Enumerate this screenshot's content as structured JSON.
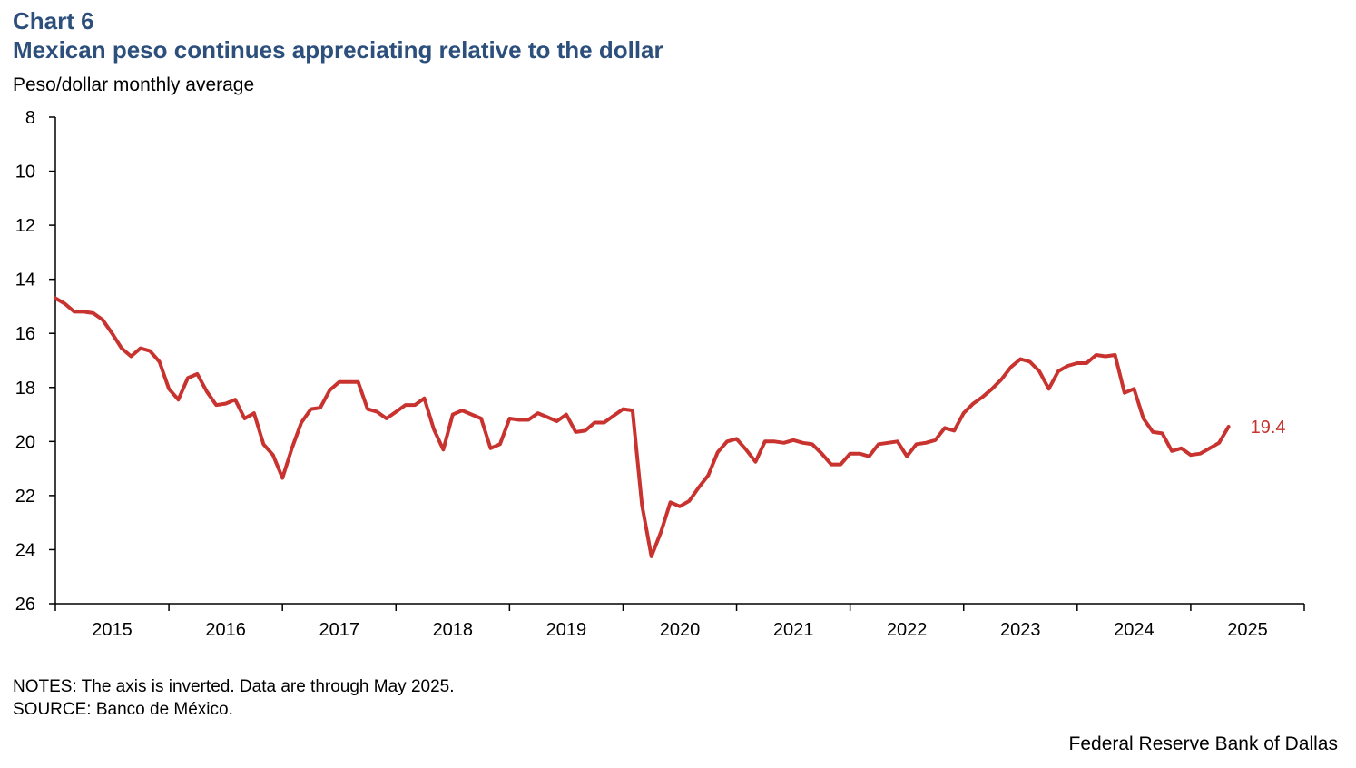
{
  "header": {
    "chart_number": "Chart 6",
    "title": "Mexican peso continues appreciating relative to the dollar",
    "subtitle": "Peso/dollar monthly average"
  },
  "footer": {
    "notes": "NOTES: The axis is inverted. Data are through May 2025.",
    "source": "SOURCE: Banco de México.",
    "credit": "Federal Reserve Bank of Dallas"
  },
  "colors": {
    "line": "#c8332f",
    "title": "#2c4f7c",
    "axis": "#000000"
  },
  "chart_data": {
    "type": "line",
    "y_inverted": true,
    "ylim": [
      8,
      26
    ],
    "yticks": [
      8,
      10,
      12,
      14,
      16,
      18,
      20,
      22,
      24,
      26
    ],
    "x_start": "2015-01",
    "x_end": "2025-12",
    "year_labels": [
      "2015",
      "2016",
      "2017",
      "2018",
      "2019",
      "2020",
      "2021",
      "2022",
      "2023",
      "2024",
      "2025"
    ],
    "end_label": "19.4",
    "series": [
      {
        "x": [
          "2015-01",
          "2015-02",
          "2015-03",
          "2015-04",
          "2015-05",
          "2015-06",
          "2015-07",
          "2015-08",
          "2015-09",
          "2015-10",
          "2015-11",
          "2015-12",
          "2016-01",
          "2016-02",
          "2016-03",
          "2016-04",
          "2016-05",
          "2016-06",
          "2016-07",
          "2016-08",
          "2016-09",
          "2016-10",
          "2016-11",
          "2016-12",
          "2017-01",
          "2017-02",
          "2017-03",
          "2017-04",
          "2017-05",
          "2017-06",
          "2017-07",
          "2017-08",
          "2017-09",
          "2017-10",
          "2017-11",
          "2017-12",
          "2018-01",
          "2018-02",
          "2018-03",
          "2018-04",
          "2018-05",
          "2018-06",
          "2018-07",
          "2018-08",
          "2018-09",
          "2018-10",
          "2018-11",
          "2018-12",
          "2019-01",
          "2019-02",
          "2019-03",
          "2019-04",
          "2019-05",
          "2019-06",
          "2019-07",
          "2019-08",
          "2019-09",
          "2019-10",
          "2019-11",
          "2019-12",
          "2020-01",
          "2020-02",
          "2020-03",
          "2020-04",
          "2020-05",
          "2020-06",
          "2020-07",
          "2020-08",
          "2020-09",
          "2020-10",
          "2020-11",
          "2020-12",
          "2021-01",
          "2021-02",
          "2021-03",
          "2021-04",
          "2021-05",
          "2021-06",
          "2021-07",
          "2021-08",
          "2021-09",
          "2021-10",
          "2021-11",
          "2021-12",
          "2022-01",
          "2022-02",
          "2022-03",
          "2022-04",
          "2022-05",
          "2022-06",
          "2022-07",
          "2022-08",
          "2022-09",
          "2022-10",
          "2022-11",
          "2022-12",
          "2023-01",
          "2023-02",
          "2023-03",
          "2023-04",
          "2023-05",
          "2023-06",
          "2023-07",
          "2023-08",
          "2023-09",
          "2023-10",
          "2023-11",
          "2023-12",
          "2024-01",
          "2024-02",
          "2024-03",
          "2024-04",
          "2024-05",
          "2024-06",
          "2024-07",
          "2024-08",
          "2024-09",
          "2024-10",
          "2024-11",
          "2024-12",
          "2025-01",
          "2025-02",
          "2025-03",
          "2025-04",
          "2025-05"
        ],
        "values": [
          14.7,
          14.9,
          15.2,
          15.2,
          15.25,
          15.5,
          16.0,
          16.55,
          16.85,
          16.55,
          16.65,
          17.05,
          18.05,
          18.45,
          17.65,
          17.5,
          18.15,
          18.65,
          18.6,
          18.45,
          19.15,
          18.95,
          20.1,
          20.5,
          21.35,
          20.25,
          19.3,
          18.8,
          18.75,
          18.1,
          17.8,
          17.8,
          17.8,
          18.8,
          18.9,
          19.15,
          18.9,
          18.65,
          18.65,
          18.4,
          19.55,
          20.3,
          19.0,
          18.85,
          19.0,
          19.15,
          20.25,
          20.1,
          19.15,
          19.2,
          19.2,
          18.95,
          19.1,
          19.25,
          19.0,
          19.65,
          19.6,
          19.3,
          19.3,
          19.05,
          18.8,
          18.85,
          22.35,
          24.25,
          23.35,
          22.25,
          22.4,
          22.2,
          21.7,
          21.25,
          20.4,
          20.0,
          19.9,
          20.3,
          20.75,
          20.0,
          20.0,
          20.05,
          19.95,
          20.05,
          20.1,
          20.45,
          20.85,
          20.85,
          20.45,
          20.45,
          20.55,
          20.1,
          20.05,
          20.0,
          20.55,
          20.1,
          20.05,
          19.95,
          19.5,
          19.6,
          18.95,
          18.6,
          18.35,
          18.05,
          17.7,
          17.25,
          16.95,
          17.05,
          17.4,
          18.05,
          17.4,
          17.2,
          17.1,
          17.1,
          16.8,
          16.85,
          16.8,
          18.2,
          18.05,
          19.15,
          19.65,
          19.7,
          20.35,
          20.25,
          20.5,
          20.45,
          20.25,
          20.05,
          19.45
        ]
      }
    ]
  }
}
